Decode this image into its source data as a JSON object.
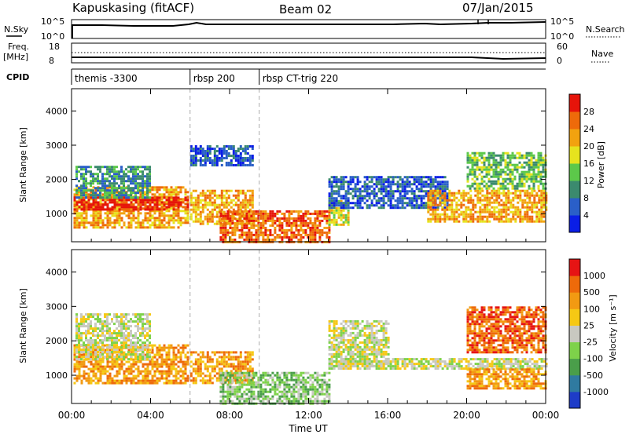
{
  "header": {
    "radar": "Kapuskasing (fitACF)",
    "beam": "Beam 02",
    "date": "07/Jan/2015"
  },
  "status_panels": {
    "nsky_label": "N.Sky",
    "nsky_ticks": [
      "10^5",
      "10^0"
    ],
    "nsearch_label": "N.Search",
    "nsearch_ticks": [
      "10^5",
      "10^0"
    ],
    "freq_label": "Freq.",
    "freq_unit": "[MHz]",
    "freq_ticks": [
      "18",
      "8"
    ],
    "nave_label": "Nave",
    "nave_ticks": [
      "60",
      "0"
    ],
    "cpid_label": "CPID"
  },
  "cpid_segments": [
    {
      "label": "themis -3300",
      "start_hour": 0
    },
    {
      "label": "rbsp 200",
      "start_hour": 6.0
    },
    {
      "label": "rbsp CT-trig 220",
      "start_hour": 9.5
    }
  ],
  "time_axis": {
    "label": "Time UT",
    "range_hours": [
      0,
      24
    ],
    "ticks": [
      {
        "hour": 0,
        "label": "00:00"
      },
      {
        "hour": 4,
        "label": "04:00"
      },
      {
        "hour": 8,
        "label": "08:00"
      },
      {
        "hour": 12,
        "label": "12:00"
      },
      {
        "hour": 16,
        "label": "16:00"
      },
      {
        "hour": 20,
        "label": "20:00"
      },
      {
        "hour": 24,
        "label": "00:00"
      }
    ]
  },
  "range_axis": {
    "label": "Slant Range [km]",
    "range_km": [
      180,
      4650
    ],
    "ticks": [
      1000,
      2000,
      3000,
      4000
    ]
  },
  "power_colorbar": {
    "label": "Power [dB]",
    "ticks": [
      "4",
      "8",
      "12",
      "16",
      "20",
      "24",
      "28"
    ],
    "colors": [
      "#0a1ee6",
      "#2a5fc8",
      "#3b8a6e",
      "#5cc84a",
      "#e6e31e",
      "#f2a20f",
      "#ee6a0a",
      "#e6140a"
    ]
  },
  "velocity_colorbar": {
    "label": "Velocity  [m s⁻¹]",
    "ticks": [
      "1000",
      "500",
      "100",
      "25",
      "-25",
      "-100",
      "-500",
      "-1000"
    ],
    "colors": [
      "#1e3cc8",
      "#2f7aa0",
      "#4a9e4a",
      "#7ed24a",
      "#c8c8c0",
      "#f6c814",
      "#f29a12",
      "#ee6a0a",
      "#e61414"
    ]
  },
  "chart_data": [
    {
      "type": "heatmap",
      "name": "power",
      "xlabel": "Time UT",
      "ylabel": "Slant Range [km]",
      "xlim": [
        0,
        24
      ],
      "ylim": [
        180,
        4650
      ],
      "regions": [
        {
          "t": [
            0.1,
            5.9
          ],
          "r": [
            600,
            1800
          ],
          "level": 5
        },
        {
          "t": [
            0.1,
            5.9
          ],
          "r": [
            1100,
            1500
          ],
          "level": 7
        },
        {
          "t": [
            0.2,
            4.0
          ],
          "r": [
            1500,
            2400
          ],
          "level": 2
        },
        {
          "t": [
            6.0,
            9.2
          ],
          "r": [
            700,
            1700
          ],
          "level": 5
        },
        {
          "t": [
            6.0,
            9.2
          ],
          "r": [
            2400,
            3000
          ],
          "level": 1
        },
        {
          "t": [
            7.5,
            13.0
          ],
          "r": [
            200,
            1100
          ],
          "level": 6
        },
        {
          "t": [
            13.0,
            14.0
          ],
          "r": [
            700,
            1400
          ],
          "level": 4
        },
        {
          "t": [
            13.0,
            19.0
          ],
          "r": [
            1200,
            2100
          ],
          "level": 1
        },
        {
          "t": [
            18.0,
            24.0
          ],
          "r": [
            800,
            1700
          ],
          "level": 5
        },
        {
          "t": [
            20.0,
            24.0
          ],
          "r": [
            1700,
            2800
          ],
          "level": 3
        }
      ]
    },
    {
      "type": "heatmap",
      "name": "velocity",
      "xlabel": "Time UT",
      "ylabel": "Slant Range [km]",
      "xlim": [
        0,
        24
      ],
      "ylim": [
        180,
        4650
      ],
      "regions": [
        {
          "t": [
            0.1,
            5.9
          ],
          "r": [
            800,
            1900
          ],
          "level": 6
        },
        {
          "t": [
            0.2,
            4.0
          ],
          "r": [
            1500,
            2800
          ],
          "level": 4
        },
        {
          "t": [
            6.0,
            9.2
          ],
          "r": [
            800,
            1700
          ],
          "level": 6
        },
        {
          "t": [
            7.5,
            13.0
          ],
          "r": [
            200,
            1100
          ],
          "level": 3
        },
        {
          "t": [
            13.0,
            16.0
          ],
          "r": [
            1300,
            2600
          ],
          "level": 4
        },
        {
          "t": [
            13.0,
            24.0
          ],
          "r": [
            1200,
            1500
          ],
          "level": 4
        },
        {
          "t": [
            20.0,
            24.0
          ],
          "r": [
            600,
            1200
          ],
          "level": 6
        },
        {
          "t": [
            20.0,
            24.0
          ],
          "r": [
            1700,
            3000
          ],
          "level": 7
        }
      ]
    }
  ]
}
